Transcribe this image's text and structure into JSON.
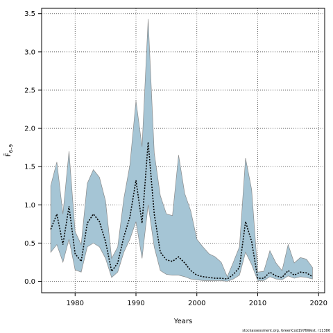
{
  "chart_data": {
    "type": "area",
    "xlabel": "Years",
    "ylabel": "F̄",
    "ylabel_sub": "6–9",
    "xlim": [
      1974.5,
      2021
    ],
    "ylim": [
      -0.15,
      3.57
    ],
    "xticks": [
      1980,
      1990,
      2000,
      2010,
      2020
    ],
    "yticks": [
      0.0,
      0.5,
      1.0,
      1.5,
      2.0,
      2.5,
      3.0,
      3.5
    ],
    "ytick_labels": [
      "0.0",
      "0.5",
      "1.0",
      "1.5",
      "2.0",
      "2.5",
      "3.0",
      "3.5"
    ],
    "grid": true,
    "footer": "stockassessment.org, GreenCod1976West, r11386",
    "colors": {
      "band": "#a5c5d5",
      "band_edge": "#8a8a8a",
      "line": "#000000"
    },
    "x": [
      1976,
      1977,
      1978,
      1979,
      1980,
      1981,
      1982,
      1983,
      1984,
      1985,
      1986,
      1987,
      1988,
      1989,
      1990,
      1991,
      1992,
      1993,
      1994,
      1995,
      1996,
      1997,
      1998,
      1999,
      2000,
      2001,
      2002,
      2003,
      2004,
      2005,
      2006,
      2007,
      2008,
      2009,
      2010,
      2011,
      2012,
      2013,
      2014,
      2015,
      2016,
      2017,
      2018,
      2019
    ],
    "series": [
      {
        "role": "estimate",
        "values": [
          0.68,
          0.88,
          0.48,
          0.98,
          0.36,
          0.26,
          0.76,
          0.88,
          0.78,
          0.52,
          0.13,
          0.24,
          0.58,
          0.84,
          1.32,
          0.76,
          1.82,
          0.88,
          0.38,
          0.28,
          0.26,
          0.32,
          0.24,
          0.14,
          0.08,
          0.06,
          0.05,
          0.04,
          0.04,
          0.03,
          0.09,
          0.18,
          0.78,
          0.52,
          0.04,
          0.04,
          0.12,
          0.07,
          0.05,
          0.14,
          0.08,
          0.12,
          0.11,
          0.06
        ]
      },
      {
        "role": "lower",
        "values": [
          0.38,
          0.48,
          0.25,
          0.55,
          0.15,
          0.12,
          0.45,
          0.5,
          0.45,
          0.3,
          0.05,
          0.12,
          0.38,
          0.55,
          0.78,
          0.3,
          1.0,
          0.45,
          0.14,
          0.09,
          0.08,
          0.08,
          0.06,
          0.03,
          0.02,
          0.01,
          0.01,
          0.01,
          0.01,
          0.0,
          0.03,
          0.08,
          0.38,
          0.22,
          0.01,
          0.01,
          0.06,
          0.03,
          0.02,
          0.07,
          0.04,
          0.06,
          0.05,
          0.03
        ]
      },
      {
        "role": "upper",
        "values": [
          1.25,
          1.56,
          0.88,
          1.7,
          0.65,
          0.48,
          1.28,
          1.46,
          1.36,
          1.05,
          0.3,
          0.45,
          1.08,
          1.52,
          2.36,
          1.76,
          3.43,
          1.68,
          1.12,
          0.88,
          0.86,
          1.65,
          1.15,
          0.92,
          0.55,
          0.45,
          0.36,
          0.32,
          0.25,
          0.06,
          0.25,
          0.45,
          1.61,
          1.2,
          0.12,
          0.13,
          0.4,
          0.24,
          0.14,
          0.48,
          0.24,
          0.31,
          0.29,
          0.18
        ]
      }
    ]
  }
}
